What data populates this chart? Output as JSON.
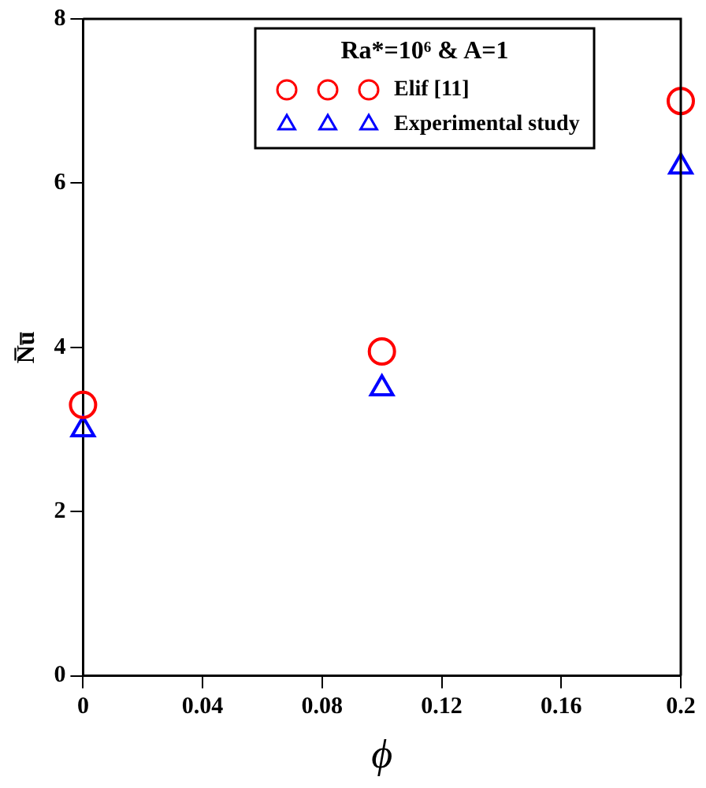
{
  "chart_data": {
    "type": "scatter",
    "xlabel": "ϕ",
    "ylabel": "N̅u̅",
    "legend_title": "Ra*=10⁶ & A=1",
    "legend": "top right",
    "grid": false,
    "xlim": [
      0,
      0.2
    ],
    "xticks": [
      0,
      0.04,
      0.08,
      0.12,
      0.16,
      0.2
    ],
    "ylim": [
      0,
      8
    ],
    "yticks": [
      0,
      2,
      4,
      6,
      8
    ],
    "series": [
      {
        "name": "Elif [11]",
        "color": "#ff0000",
        "marker": "circle",
        "x": [
          0,
          0.1,
          0.2
        ],
        "values": [
          3.3,
          3.95,
          7.0
        ]
      },
      {
        "name": "Experimental study",
        "color": "#0000ff",
        "marker": "triangle",
        "x": [
          0,
          0.1,
          0.2
        ],
        "values": [
          3.0,
          3.5,
          6.2
        ]
      }
    ]
  }
}
